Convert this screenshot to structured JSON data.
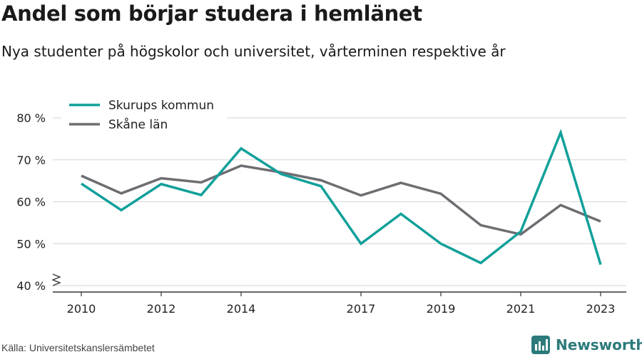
{
  "title": "Andel som börjar studera i hemlänet",
  "subtitle": "Nya studenter på högskolor och universitet, vårterminen respektive år",
  "source": "Källa: Universitetskanslersämbetet",
  "brand": {
    "name": "Newsworthy",
    "icon": "newsworthy-logo-icon",
    "color": "#2c7a7b"
  },
  "chart_data": {
    "type": "line",
    "x": [
      2010,
      2011,
      2012,
      2013,
      2014,
      2015,
      2016,
      2017,
      2018,
      2019,
      2020,
      2021,
      2022,
      2023
    ],
    "x_tick_labels": [
      "2010",
      "2012",
      "2014",
      "2017",
      "2019",
      "2021",
      "2023"
    ],
    "y_tick_labels": [
      "40 %",
      "50 %",
      "60 %",
      "70 %",
      "80 %"
    ],
    "ylim": [
      40,
      80
    ],
    "xlim": [
      2010,
      2023
    ],
    "y_axis_break": true,
    "grid": "horizontal",
    "legend_position": "top-left",
    "series": [
      {
        "name": "Skurups kommun",
        "color": "#11a09a",
        "values": [
          64.3,
          58,
          64.2,
          61.6,
          72.7,
          66.6,
          63.7,
          50,
          57.1,
          50,
          45.4,
          52.9,
          76.5,
          45
        ]
      },
      {
        "name": "Skåne län",
        "color": "#6d6d72",
        "values": [
          66.2,
          62,
          65.6,
          64.6,
          68.6,
          67,
          65.1,
          61.5,
          64.5,
          61.9,
          54.4,
          52.2,
          59.2,
          55.3
        ]
      }
    ]
  }
}
